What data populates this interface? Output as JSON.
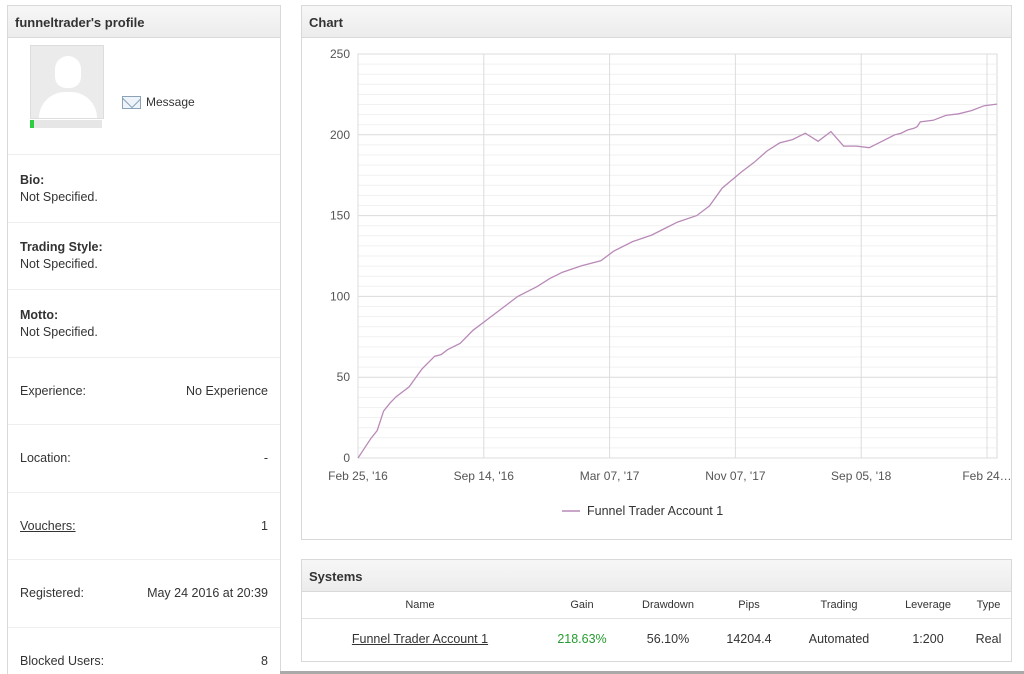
{
  "profile": {
    "title": "funneltrader's profile",
    "message_label": "Message",
    "bio": {
      "label": "Bio:",
      "value": "Not Specified."
    },
    "trading_style": {
      "label": "Trading Style:",
      "value": "Not Specified."
    },
    "motto": {
      "label": "Motto:",
      "value": "Not Specified."
    },
    "experience": {
      "label": "Experience:",
      "value": "No Experience"
    },
    "location": {
      "label": "Location:",
      "value": "-"
    },
    "vouchers": {
      "label": "Vouchers:",
      "value": "1"
    },
    "registered": {
      "label": "Registered:",
      "value": "May 24 2016 at 20:39"
    },
    "blocked_users": {
      "label": "Blocked Users:",
      "value": "8"
    }
  },
  "chart_panel": {
    "title": "Chart"
  },
  "chart_data": {
    "type": "line",
    "x_tick_labels": [
      "Feb 25, '16",
      "Sep 14, '16",
      "Mar 07, '17",
      "Nov 07, '17",
      "Sep 05, '18",
      "Feb 24…"
    ],
    "y_ticks": [
      0,
      50,
      100,
      150,
      200,
      250
    ],
    "ylim": [
      0,
      250
    ],
    "grid": true,
    "legend_position": "bottom",
    "series": [
      {
        "name": "Funnel Trader Account 1",
        "color": "#b98ab8",
        "x_fraction": [
          0,
          0.01,
          0.02,
          0.03,
          0.04,
          0.05,
          0.06,
          0.08,
          0.1,
          0.12,
          0.13,
          0.14,
          0.16,
          0.18,
          0.2,
          0.23,
          0.25,
          0.28,
          0.3,
          0.32,
          0.35,
          0.38,
          0.4,
          0.43,
          0.46,
          0.48,
          0.5,
          0.53,
          0.55,
          0.57,
          0.6,
          0.62,
          0.64,
          0.66,
          0.68,
          0.7,
          0.72,
          0.74,
          0.76,
          0.78,
          0.8,
          0.82,
          0.84,
          0.85,
          0.86,
          0.87,
          0.875,
          0.88,
          0.9,
          0.92,
          0.94,
          0.96,
          0.98,
          1.0
        ],
        "values": [
          0,
          6,
          12,
          17,
          29,
          34,
          38,
          44,
          55,
          63,
          64,
          67,
          71,
          79,
          85,
          94,
          100,
          106,
          111,
          115,
          119,
          122,
          128,
          134,
          138,
          142,
          146,
          150,
          156,
          167,
          177,
          183,
          190,
          195,
          197,
          201,
          196,
          202,
          193,
          193,
          192,
          196,
          200,
          201,
          203,
          204,
          205,
          208,
          209,
          212,
          213,
          215,
          218,
          219
        ]
      }
    ]
  },
  "systems_panel": {
    "title": "Systems",
    "columns": [
      "Name",
      "Gain",
      "Drawdown",
      "Pips",
      "Trading",
      "Leverage",
      "Type"
    ],
    "rows": [
      {
        "name": "Funnel Trader Account 1",
        "gain": "218.63%",
        "drawdown": "56.10%",
        "pips": "14204.4",
        "trading": "Automated",
        "leverage": "1:200",
        "type": "Real"
      }
    ]
  }
}
